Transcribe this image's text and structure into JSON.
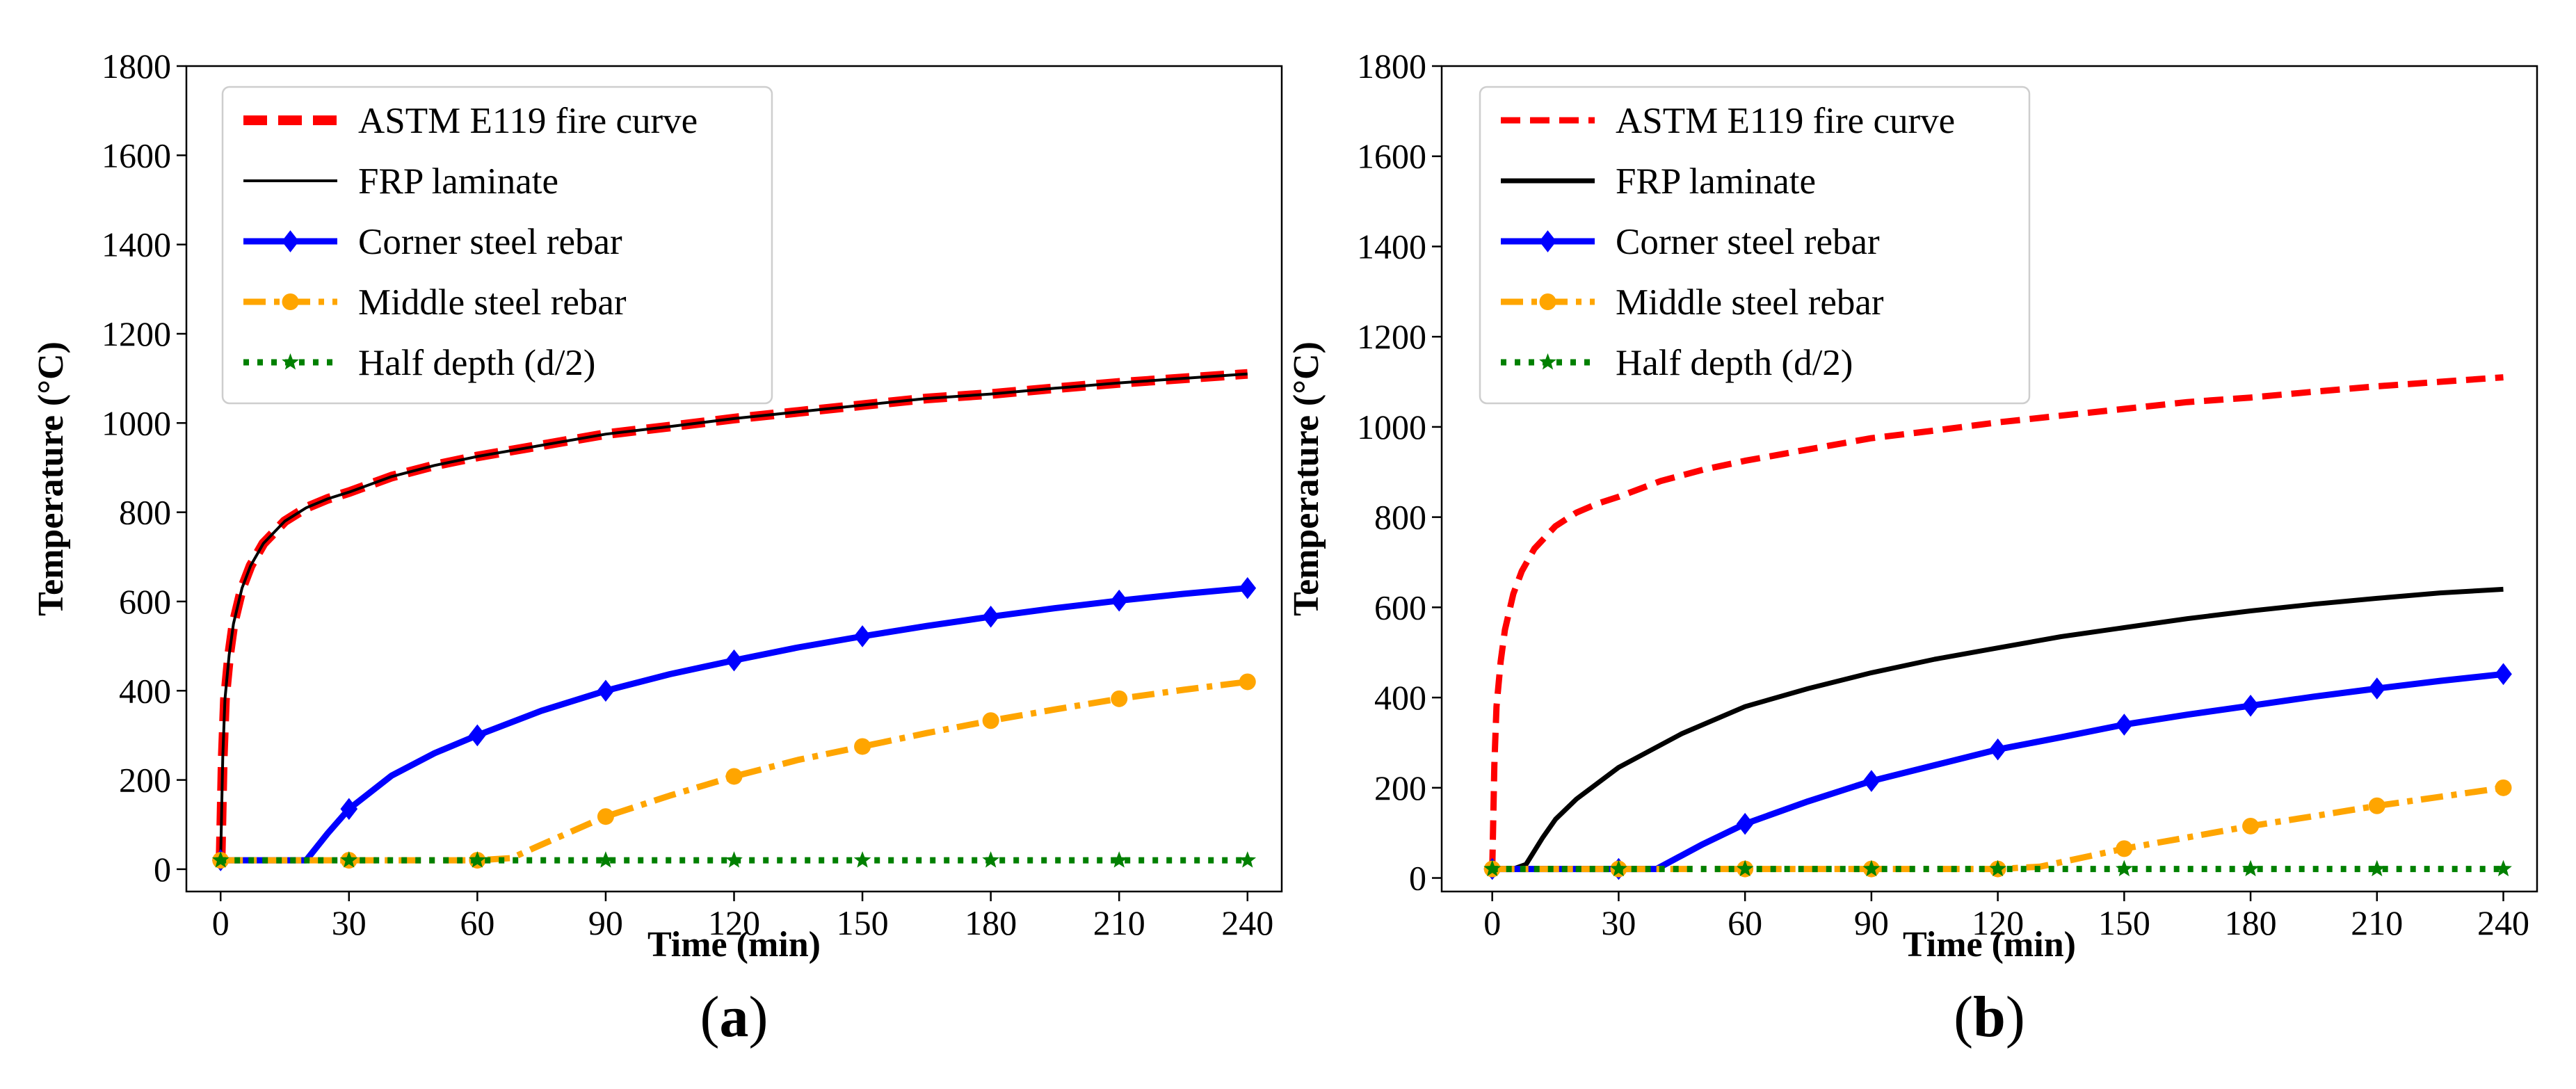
{
  "chart_data": [
    {
      "type": "line",
      "panel_label": "a",
      "xlabel": "Time (min)",
      "ylabel": "Temperature (°C)",
      "xlim": [
        -8,
        248
      ],
      "ylim": [
        -50,
        1800
      ],
      "xticks": [
        0,
        30,
        60,
        90,
        120,
        150,
        180,
        210,
        240
      ],
      "yticks": [
        0,
        200,
        400,
        600,
        800,
        1000,
        1200,
        1400,
        1600,
        1800
      ],
      "legend_position": "top-left",
      "series": [
        {
          "name": "ASTM E119 fire curve",
          "color": "#ff0000",
          "style": "dashed-thick",
          "x": [
            0,
            0.5,
            1,
            2,
            3,
            5,
            7,
            10,
            15,
            20,
            25,
            30,
            40,
            50,
            60,
            75,
            90,
            105,
            120,
            135,
            150,
            165,
            180,
            195,
            210,
            225,
            240
          ],
          "y": [
            20,
            250,
            380,
            480,
            550,
            630,
            680,
            730,
            780,
            810,
            830,
            845,
            880,
            905,
            925,
            950,
            975,
            992,
            1010,
            1025,
            1040,
            1055,
            1065,
            1078,
            1090,
            1100,
            1110
          ]
        },
        {
          "name": "FRP laminate",
          "color": "#000000",
          "style": "solid-thin",
          "x": [
            0,
            0.5,
            1,
            2,
            3,
            5,
            7,
            10,
            15,
            20,
            25,
            30,
            40,
            50,
            60,
            75,
            90,
            105,
            120,
            135,
            150,
            165,
            180,
            195,
            210,
            225,
            240
          ],
          "y": [
            20,
            250,
            380,
            480,
            550,
            630,
            680,
            730,
            780,
            810,
            830,
            845,
            880,
            905,
            925,
            950,
            975,
            992,
            1010,
            1025,
            1040,
            1055,
            1065,
            1078,
            1090,
            1100,
            1110
          ]
        },
        {
          "name": "Corner steel rebar",
          "color": "#0000ff",
          "style": "solid-diamond",
          "x": [
            0,
            10,
            20,
            25,
            30,
            40,
            50,
            60,
            75,
            90,
            105,
            120,
            135,
            150,
            165,
            180,
            195,
            210,
            225,
            240
          ],
          "y": [
            20,
            20,
            20,
            80,
            135,
            210,
            260,
            300,
            355,
            400,
            437,
            468,
            497,
            522,
            545,
            566,
            585,
            602,
            617,
            630
          ],
          "marker_x": [
            0,
            30,
            60,
            90,
            120,
            150,
            180,
            210,
            240
          ]
        },
        {
          "name": "Middle steel rebar",
          "color": "#ffa500",
          "style": "dashdot-circle",
          "x": [
            0,
            30,
            60,
            68,
            75,
            90,
            105,
            120,
            135,
            150,
            165,
            180,
            195,
            210,
            225,
            240
          ],
          "y": [
            20,
            20,
            20,
            25,
            55,
            118,
            165,
            208,
            245,
            275,
            305,
            333,
            358,
            382,
            402,
            420
          ],
          "marker_x": [
            0,
            30,
            60,
            90,
            120,
            150,
            180,
            210,
            240
          ]
        },
        {
          "name": "Half depth (d/2)",
          "color": "#008000",
          "style": "dotted-star",
          "x": [
            0,
            240
          ],
          "y": [
            20,
            20
          ],
          "marker_x": [
            0,
            30,
            60,
            90,
            120,
            150,
            180,
            210,
            240
          ]
        }
      ]
    },
    {
      "type": "line",
      "panel_label": "b",
      "xlabel": "Time (min)",
      "ylabel": "Temperature (°C)",
      "xlim": [
        -12,
        248
      ],
      "ylim": [
        -30,
        1800
      ],
      "xticks": [
        0,
        30,
        60,
        90,
        120,
        150,
        180,
        210,
        240
      ],
      "yticks": [
        0,
        200,
        400,
        600,
        800,
        1000,
        1200,
        1400,
        1600,
        1800
      ],
      "legend_position": "top-left",
      "series": [
        {
          "name": "ASTM E119 fire curve",
          "color": "#ff0000",
          "style": "dashed",
          "x": [
            0,
            0.5,
            1,
            2,
            3,
            5,
            7,
            10,
            15,
            20,
            25,
            30,
            40,
            50,
            60,
            75,
            90,
            105,
            120,
            135,
            150,
            165,
            180,
            195,
            210,
            225,
            240
          ],
          "y": [
            20,
            250,
            380,
            480,
            550,
            630,
            680,
            730,
            780,
            810,
            830,
            845,
            880,
            905,
            925,
            950,
            975,
            992,
            1010,
            1025,
            1040,
            1055,
            1065,
            1078,
            1090,
            1100,
            1110
          ]
        },
        {
          "name": "FRP laminate",
          "color": "#000000",
          "style": "solid",
          "x": [
            0,
            5,
            8,
            12,
            15,
            20,
            30,
            45,
            60,
            75,
            90,
            105,
            120,
            135,
            150,
            165,
            180,
            195,
            210,
            225,
            240
          ],
          "y": [
            20,
            20,
            30,
            90,
            130,
            175,
            245,
            320,
            380,
            420,
            455,
            485,
            510,
            535,
            555,
            575,
            592,
            607,
            620,
            632,
            640
          ]
        },
        {
          "name": "Corner steel rebar",
          "color": "#0000ff",
          "style": "solid-diamond",
          "x": [
            0,
            30,
            39,
            45,
            50,
            60,
            75,
            90,
            105,
            120,
            135,
            150,
            165,
            180,
            195,
            210,
            225,
            240
          ],
          "y": [
            20,
            20,
            20,
            50,
            75,
            120,
            170,
            215,
            250,
            285,
            312,
            340,
            362,
            382,
            402,
            420,
            437,
            452
          ],
          "marker_x": [
            0,
            30,
            60,
            90,
            120,
            150,
            180,
            210,
            240
          ]
        },
        {
          "name": "Middle steel rebar",
          "color": "#ffa500",
          "style": "dashdot-circle",
          "x": [
            0,
            60,
            90,
            120,
            130,
            140,
            150,
            165,
            180,
            195,
            210,
            225,
            240
          ],
          "y": [
            20,
            20,
            20,
            20,
            25,
            45,
            65,
            90,
            115,
            137,
            160,
            180,
            200
          ],
          "marker_x": [
            0,
            30,
            60,
            90,
            120,
            150,
            180,
            210,
            240
          ]
        },
        {
          "name": "Half depth (d/2)",
          "color": "#008000",
          "style": "dotted-star",
          "x": [
            0,
            240
          ],
          "y": [
            20,
            20
          ],
          "marker_x": [
            0,
            30,
            60,
            90,
            120,
            150,
            180,
            210,
            240
          ]
        }
      ]
    }
  ]
}
